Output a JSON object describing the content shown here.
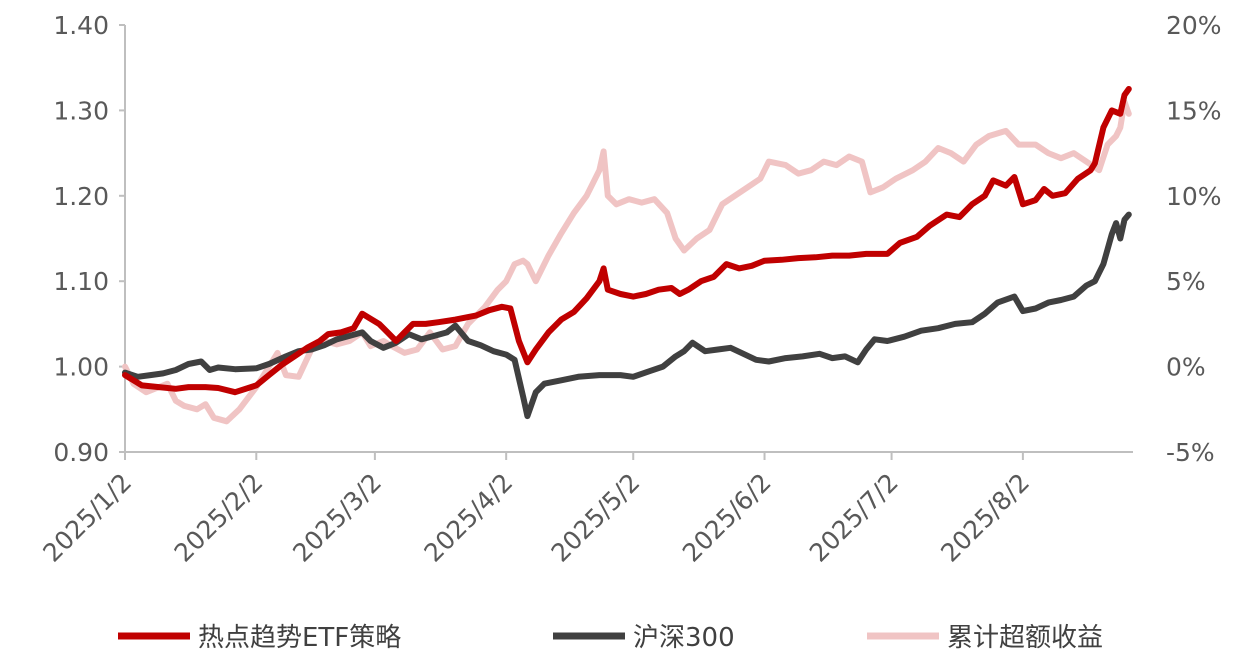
{
  "chart_data": {
    "type": "line",
    "title": "",
    "xlabel": "",
    "ylabel": "",
    "grid": false,
    "legend_placement": "bottom",
    "x_ticks": [
      "2025/1/2",
      "2025/2/2",
      "2025/3/2",
      "2025/4/2",
      "2025/5/2",
      "2025/6/2",
      "2025/7/2",
      "2025/8/2"
    ],
    "y_left": {
      "range": [
        0.9,
        1.4
      ],
      "ticks": [
        "0.90",
        "1.00",
        "1.10",
        "1.20",
        "1.30",
        "1.40"
      ]
    },
    "y_right": {
      "range": [
        -5,
        20
      ],
      "ticks": [
        "-5%",
        "0%",
        "5%",
        "10%",
        "15%",
        "20%"
      ]
    },
    "series": [
      {
        "name": "热点趋势ETF策略",
        "axis": "left",
        "color": "#c00000",
        "points": [
          [
            "2025-01-02",
            0.99
          ],
          [
            "2025-01-06",
            0.978
          ],
          [
            "2025-01-10",
            0.976
          ],
          [
            "2025-01-14",
            0.974
          ],
          [
            "2025-01-17",
            0.976
          ],
          [
            "2025-01-21",
            0.976
          ],
          [
            "2025-01-24",
            0.975
          ],
          [
            "2025-01-28",
            0.97
          ],
          [
            "2025-02-02",
            0.978
          ],
          [
            "2025-02-05",
            0.99
          ],
          [
            "2025-02-08",
            1.002
          ],
          [
            "2025-02-11",
            1.012
          ],
          [
            "2025-02-14",
            1.022
          ],
          [
            "2025-02-17",
            1.03
          ],
          [
            "2025-02-19",
            1.038
          ],
          [
            "2025-02-22",
            1.04
          ],
          [
            "2025-02-25",
            1.045
          ],
          [
            "2025-02-27",
            1.062
          ],
          [
            "2025-03-01",
            1.056
          ],
          [
            "2025-03-03",
            1.05
          ],
          [
            "2025-03-05",
            1.04
          ],
          [
            "2025-03-07",
            1.03
          ],
          [
            "2025-03-09",
            1.04
          ],
          [
            "2025-03-11",
            1.05
          ],
          [
            "2025-03-14",
            1.05
          ],
          [
            "2025-03-17",
            1.052
          ],
          [
            "2025-03-21",
            1.055
          ],
          [
            "2025-03-24",
            1.058
          ],
          [
            "2025-03-26",
            1.06
          ],
          [
            "2025-03-29",
            1.066
          ],
          [
            "2025-04-01",
            1.07
          ],
          [
            "2025-04-03",
            1.068
          ],
          [
            "2025-04-05",
            1.03
          ],
          [
            "2025-04-07",
            1.005
          ],
          [
            "2025-04-09",
            1.02
          ],
          [
            "2025-04-12",
            1.04
          ],
          [
            "2025-04-15",
            1.055
          ],
          [
            "2025-04-18",
            1.064
          ],
          [
            "2025-04-21",
            1.08
          ],
          [
            "2025-04-24",
            1.1
          ],
          [
            "2025-04-25",
            1.115
          ],
          [
            "2025-04-26",
            1.09
          ],
          [
            "2025-04-29",
            1.085
          ],
          [
            "2025-05-02",
            1.082
          ],
          [
            "2025-05-05",
            1.085
          ],
          [
            "2025-05-08",
            1.09
          ],
          [
            "2025-05-11",
            1.092
          ],
          [
            "2025-05-13",
            1.085
          ],
          [
            "2025-05-15",
            1.09
          ],
          [
            "2025-05-18",
            1.1
          ],
          [
            "2025-05-21",
            1.105
          ],
          [
            "2025-05-24",
            1.12
          ],
          [
            "2025-05-27",
            1.115
          ],
          [
            "2025-05-30",
            1.118
          ],
          [
            "2025-06-02",
            1.124
          ],
          [
            "2025-06-06",
            1.125
          ],
          [
            "2025-06-10",
            1.127
          ],
          [
            "2025-06-14",
            1.128
          ],
          [
            "2025-06-18",
            1.13
          ],
          [
            "2025-06-22",
            1.13
          ],
          [
            "2025-06-26",
            1.132
          ],
          [
            "2025-07-01",
            1.132
          ],
          [
            "2025-07-04",
            1.145
          ],
          [
            "2025-07-08",
            1.152
          ],
          [
            "2025-07-11",
            1.165
          ],
          [
            "2025-07-15",
            1.178
          ],
          [
            "2025-07-18",
            1.175
          ],
          [
            "2025-07-21",
            1.19
          ],
          [
            "2025-07-24",
            1.2
          ],
          [
            "2025-07-26",
            1.218
          ],
          [
            "2025-07-29",
            1.212
          ],
          [
            "2025-07-31",
            1.222
          ],
          [
            "2025-08-02",
            1.19
          ],
          [
            "2025-08-05",
            1.195
          ],
          [
            "2025-08-07",
            1.208
          ],
          [
            "2025-08-09",
            1.2
          ],
          [
            "2025-08-12",
            1.203
          ],
          [
            "2025-08-15",
            1.22
          ],
          [
            "2025-08-18",
            1.23
          ],
          [
            "2025-08-19",
            1.238
          ],
          [
            "2025-08-21",
            1.28
          ],
          [
            "2025-08-23",
            1.3
          ],
          [
            "2025-08-25",
            1.296
          ],
          [
            "2025-08-26",
            1.318
          ],
          [
            "2025-08-27",
            1.325
          ]
        ]
      },
      {
        "name": "沪深300",
        "axis": "left",
        "color": "#404040",
        "points": [
          [
            "2025-01-02",
            0.993
          ],
          [
            "2025-01-05",
            0.988
          ],
          [
            "2025-01-08",
            0.99
          ],
          [
            "2025-01-11",
            0.992
          ],
          [
            "2025-01-14",
            0.996
          ],
          [
            "2025-01-17",
            1.003
          ],
          [
            "2025-01-20",
            1.006
          ],
          [
            "2025-01-22",
            0.996
          ],
          [
            "2025-01-24",
            0.999
          ],
          [
            "2025-01-28",
            0.997
          ],
          [
            "2025-02-02",
            0.998
          ],
          [
            "2025-02-05",
            1.003
          ],
          [
            "2025-02-09",
            1.012
          ],
          [
            "2025-02-12",
            1.018
          ],
          [
            "2025-02-15",
            1.02
          ],
          [
            "2025-02-18",
            1.025
          ],
          [
            "2025-02-21",
            1.032
          ],
          [
            "2025-02-24",
            1.036
          ],
          [
            "2025-02-27",
            1.04
          ],
          [
            "2025-03-01",
            1.03
          ],
          [
            "2025-03-04",
            1.022
          ],
          [
            "2025-03-07",
            1.028
          ],
          [
            "2025-03-10",
            1.038
          ],
          [
            "2025-03-13",
            1.032
          ],
          [
            "2025-03-16",
            1.036
          ],
          [
            "2025-03-19",
            1.04
          ],
          [
            "2025-03-21",
            1.048
          ],
          [
            "2025-03-24",
            1.03
          ],
          [
            "2025-03-27",
            1.025
          ],
          [
            "2025-03-30",
            1.018
          ],
          [
            "2025-04-02",
            1.014
          ],
          [
            "2025-04-04",
            1.008
          ],
          [
            "2025-04-06",
            0.965
          ],
          [
            "2025-04-07",
            0.942
          ],
          [
            "2025-04-09",
            0.97
          ],
          [
            "2025-04-11",
            0.98
          ],
          [
            "2025-04-15",
            0.984
          ],
          [
            "2025-04-19",
            0.988
          ],
          [
            "2025-04-24",
            0.99
          ],
          [
            "2025-04-29",
            0.99
          ],
          [
            "2025-05-02",
            0.988
          ],
          [
            "2025-05-06",
            0.995
          ],
          [
            "2025-05-09",
            1.0
          ],
          [
            "2025-05-12",
            1.012
          ],
          [
            "2025-05-14",
            1.018
          ],
          [
            "2025-05-16",
            1.028
          ],
          [
            "2025-05-19",
            1.018
          ],
          [
            "2025-05-22",
            1.02
          ],
          [
            "2025-05-25",
            1.022
          ],
          [
            "2025-05-28",
            1.015
          ],
          [
            "2025-05-31",
            1.008
          ],
          [
            "2025-06-03",
            1.006
          ],
          [
            "2025-06-07",
            1.01
          ],
          [
            "2025-06-11",
            1.012
          ],
          [
            "2025-06-15",
            1.015
          ],
          [
            "2025-06-18",
            1.01
          ],
          [
            "2025-06-21",
            1.012
          ],
          [
            "2025-06-24",
            1.005
          ],
          [
            "2025-06-26",
            1.02
          ],
          [
            "2025-06-28",
            1.032
          ],
          [
            "2025-07-01",
            1.03
          ],
          [
            "2025-07-05",
            1.035
          ],
          [
            "2025-07-09",
            1.042
          ],
          [
            "2025-07-13",
            1.045
          ],
          [
            "2025-07-17",
            1.05
          ],
          [
            "2025-07-21",
            1.052
          ],
          [
            "2025-07-24",
            1.062
          ],
          [
            "2025-07-27",
            1.075
          ],
          [
            "2025-07-31",
            1.082
          ],
          [
            "2025-08-02",
            1.065
          ],
          [
            "2025-08-05",
            1.068
          ],
          [
            "2025-08-08",
            1.075
          ],
          [
            "2025-08-11",
            1.078
          ],
          [
            "2025-08-14",
            1.082
          ],
          [
            "2025-08-17",
            1.095
          ],
          [
            "2025-08-19",
            1.1
          ],
          [
            "2025-08-21",
            1.12
          ],
          [
            "2025-08-23",
            1.155
          ],
          [
            "2025-08-24",
            1.168
          ],
          [
            "2025-08-25",
            1.15
          ],
          [
            "2025-08-26",
            1.172
          ],
          [
            "2025-08-27",
            1.178
          ]
        ]
      },
      {
        "name": "累计超额收益",
        "axis": "right",
        "color": "#f0c4c4",
        "points": [
          [
            "2025-01-02",
            0.0
          ],
          [
            "2025-01-04",
            -1.0
          ],
          [
            "2025-01-07",
            -1.5
          ],
          [
            "2025-01-10",
            -1.2
          ],
          [
            "2025-01-12",
            -1.0
          ],
          [
            "2025-01-14",
            -2.0
          ],
          [
            "2025-01-16",
            -2.3
          ],
          [
            "2025-01-19",
            -2.5
          ],
          [
            "2025-01-21",
            -2.2
          ],
          [
            "2025-01-23",
            -3.0
          ],
          [
            "2025-01-26",
            -3.2
          ],
          [
            "2025-01-29",
            -2.5
          ],
          [
            "2025-02-02",
            -1.2
          ],
          [
            "2025-02-05",
            0.0
          ],
          [
            "2025-02-07",
            0.8
          ],
          [
            "2025-02-09",
            -0.5
          ],
          [
            "2025-02-12",
            -0.6
          ],
          [
            "2025-02-15",
            1.0
          ],
          [
            "2025-02-18",
            1.5
          ],
          [
            "2025-02-21",
            1.3
          ],
          [
            "2025-02-24",
            1.5
          ],
          [
            "2025-02-27",
            2.0
          ],
          [
            "2025-03-01",
            1.2
          ],
          [
            "2025-03-04",
            1.5
          ],
          [
            "2025-03-06",
            1.2
          ],
          [
            "2025-03-09",
            0.8
          ],
          [
            "2025-03-12",
            1.0
          ],
          [
            "2025-03-15",
            2.0
          ],
          [
            "2025-03-18",
            1.0
          ],
          [
            "2025-03-21",
            1.2
          ],
          [
            "2025-03-24",
            2.5
          ],
          [
            "2025-03-26",
            3.0
          ],
          [
            "2025-03-28",
            3.5
          ],
          [
            "2025-03-31",
            4.5
          ],
          [
            "2025-04-02",
            5.0
          ],
          [
            "2025-04-04",
            6.0
          ],
          [
            "2025-04-06",
            6.2
          ],
          [
            "2025-04-07",
            6.0
          ],
          [
            "2025-04-09",
            5.0
          ],
          [
            "2025-04-12",
            6.5
          ],
          [
            "2025-04-15",
            7.8
          ],
          [
            "2025-04-18",
            9.0
          ],
          [
            "2025-04-21",
            10.0
          ],
          [
            "2025-04-24",
            11.5
          ],
          [
            "2025-04-25",
            12.6
          ],
          [
            "2025-04-26",
            10.0
          ],
          [
            "2025-04-28",
            9.5
          ],
          [
            "2025-05-01",
            9.8
          ],
          [
            "2025-05-04",
            9.6
          ],
          [
            "2025-05-07",
            9.8
          ],
          [
            "2025-05-10",
            9.0
          ],
          [
            "2025-05-12",
            7.5
          ],
          [
            "2025-05-14",
            6.8
          ],
          [
            "2025-05-17",
            7.5
          ],
          [
            "2025-05-20",
            8.0
          ],
          [
            "2025-05-23",
            9.5
          ],
          [
            "2025-05-26",
            10.0
          ],
          [
            "2025-05-29",
            10.5
          ],
          [
            "2025-06-01",
            11.0
          ],
          [
            "2025-06-03",
            12.0
          ],
          [
            "2025-06-07",
            11.8
          ],
          [
            "2025-06-10",
            11.3
          ],
          [
            "2025-06-13",
            11.5
          ],
          [
            "2025-06-16",
            12.0
          ],
          [
            "2025-06-19",
            11.8
          ],
          [
            "2025-06-22",
            12.3
          ],
          [
            "2025-06-25",
            12.0
          ],
          [
            "2025-06-27",
            10.2
          ],
          [
            "2025-06-30",
            10.5
          ],
          [
            "2025-07-03",
            11.0
          ],
          [
            "2025-07-07",
            11.5
          ],
          [
            "2025-07-10",
            12.0
          ],
          [
            "2025-07-13",
            12.8
          ],
          [
            "2025-07-16",
            12.5
          ],
          [
            "2025-07-19",
            12.0
          ],
          [
            "2025-07-22",
            13.0
          ],
          [
            "2025-07-25",
            13.5
          ],
          [
            "2025-07-29",
            13.8
          ],
          [
            "2025-08-01",
            13.0
          ],
          [
            "2025-08-05",
            13.0
          ],
          [
            "2025-08-08",
            12.5
          ],
          [
            "2025-08-11",
            12.2
          ],
          [
            "2025-08-14",
            12.5
          ],
          [
            "2025-08-17",
            12.0
          ],
          [
            "2025-08-20",
            11.5
          ],
          [
            "2025-08-22",
            13.0
          ],
          [
            "2025-08-24",
            13.5
          ],
          [
            "2025-08-25",
            14.0
          ],
          [
            "2025-08-26",
            15.5
          ],
          [
            "2025-08-27",
            14.8
          ]
        ]
      }
    ]
  }
}
